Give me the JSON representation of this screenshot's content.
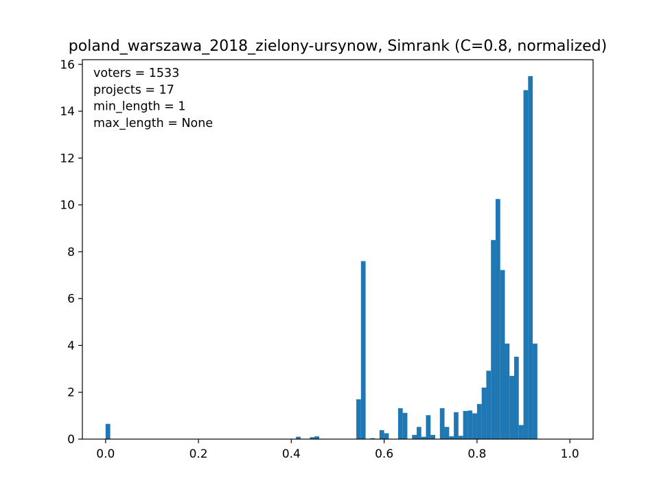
{
  "chart_data": {
    "type": "bar",
    "title": "poland_warszawa_2018_zielony-ursynow, Simrank (C=0.8, normalized)",
    "xlabel": "",
    "ylabel": "",
    "xlim": [
      -0.05,
      1.05
    ],
    "ylim": [
      0,
      16.2
    ],
    "bin_width": 0.01,
    "bar_color": "#1f77b4",
    "x_ticks": [
      {
        "value": 0.0,
        "label": "0.0"
      },
      {
        "value": 0.2,
        "label": "0.2"
      },
      {
        "value": 0.4,
        "label": "0.4"
      },
      {
        "value": 0.6,
        "label": "0.6"
      },
      {
        "value": 0.8,
        "label": "0.8"
      },
      {
        "value": 1.0,
        "label": "1.0"
      }
    ],
    "y_ticks": [
      {
        "value": 0,
        "label": "0"
      },
      {
        "value": 2,
        "label": "2"
      },
      {
        "value": 4,
        "label": "4"
      },
      {
        "value": 6,
        "label": "6"
      },
      {
        "value": 8,
        "label": "8"
      },
      {
        "value": 10,
        "label": "10"
      },
      {
        "value": 12,
        "label": "12"
      },
      {
        "value": 14,
        "label": "14"
      },
      {
        "value": 16,
        "label": "16"
      }
    ],
    "annotation_lines": [
      "voters = 1533",
      "projects = 17",
      "min_length = 1",
      "max_length = None"
    ],
    "bins": [
      {
        "x": 0.0,
        "value": 0.65
      },
      {
        "x": 0.41,
        "value": 0.1
      },
      {
        "x": 0.44,
        "value": 0.08
      },
      {
        "x": 0.45,
        "value": 0.12
      },
      {
        "x": 0.54,
        "value": 1.7
      },
      {
        "x": 0.55,
        "value": 7.6
      },
      {
        "x": 0.57,
        "value": 0.04
      },
      {
        "x": 0.59,
        "value": 0.38
      },
      {
        "x": 0.6,
        "value": 0.25
      },
      {
        "x": 0.63,
        "value": 1.32
      },
      {
        "x": 0.64,
        "value": 1.12
      },
      {
        "x": 0.66,
        "value": 0.18
      },
      {
        "x": 0.67,
        "value": 0.52
      },
      {
        "x": 0.68,
        "value": 0.1
      },
      {
        "x": 0.69,
        "value": 1.02
      },
      {
        "x": 0.7,
        "value": 0.18
      },
      {
        "x": 0.72,
        "value": 1.32
      },
      {
        "x": 0.73,
        "value": 0.52
      },
      {
        "x": 0.74,
        "value": 0.12
      },
      {
        "x": 0.75,
        "value": 1.15
      },
      {
        "x": 0.76,
        "value": 0.14
      },
      {
        "x": 0.77,
        "value": 1.2
      },
      {
        "x": 0.78,
        "value": 1.22
      },
      {
        "x": 0.79,
        "value": 1.1
      },
      {
        "x": 0.8,
        "value": 1.5
      },
      {
        "x": 0.81,
        "value": 2.2
      },
      {
        "x": 0.82,
        "value": 2.92
      },
      {
        "x": 0.83,
        "value": 8.5
      },
      {
        "x": 0.84,
        "value": 10.25
      },
      {
        "x": 0.85,
        "value": 7.22
      },
      {
        "x": 0.86,
        "value": 4.08
      },
      {
        "x": 0.87,
        "value": 2.7
      },
      {
        "x": 0.88,
        "value": 3.52
      },
      {
        "x": 0.89,
        "value": 0.6
      },
      {
        "x": 0.9,
        "value": 14.9
      },
      {
        "x": 0.91,
        "value": 15.5
      },
      {
        "x": 0.92,
        "value": 4.08
      }
    ]
  }
}
